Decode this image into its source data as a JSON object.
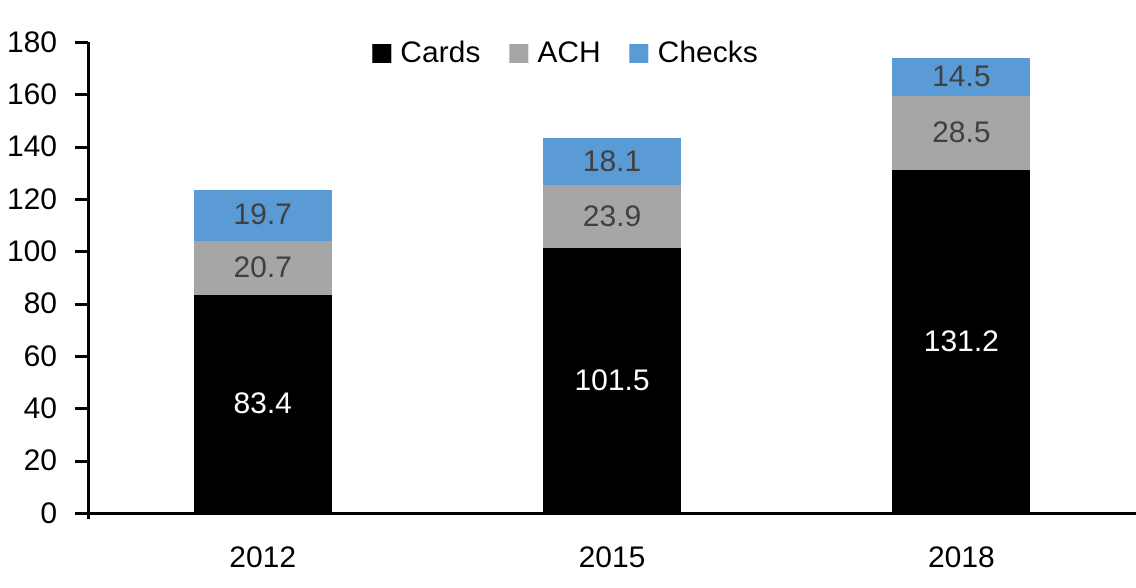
{
  "chart_data": {
    "type": "bar",
    "stacked": true,
    "title": "",
    "xlabel": "",
    "ylabel": "",
    "categories": [
      "2012",
      "2015",
      "2018"
    ],
    "series": [
      {
        "name": "Cards",
        "color": "#000000",
        "label_color": "#FFFFFF",
        "values": [
          83.4,
          101.5,
          131.2
        ]
      },
      {
        "name": "ACH",
        "color": "#A6A6A6",
        "label_color": "#404040",
        "values": [
          20.7,
          23.9,
          28.5
        ]
      },
      {
        "name": "Checks",
        "color": "#5B9BD5",
        "label_color": "#404040",
        "values": [
          19.7,
          18.1,
          14.5
        ]
      }
    ],
    "totals": [
      123.8,
      143.5,
      174.2
    ],
    "ylim": [
      0,
      180
    ],
    "ytick_step": 20,
    "ytick_labels": [
      "0",
      "20",
      "40",
      "60",
      "80",
      "100",
      "120",
      "140",
      "160",
      "180"
    ],
    "legend_position": "top",
    "grid": false,
    "axis_color": "#000000",
    "background": "#FFFFFF"
  }
}
